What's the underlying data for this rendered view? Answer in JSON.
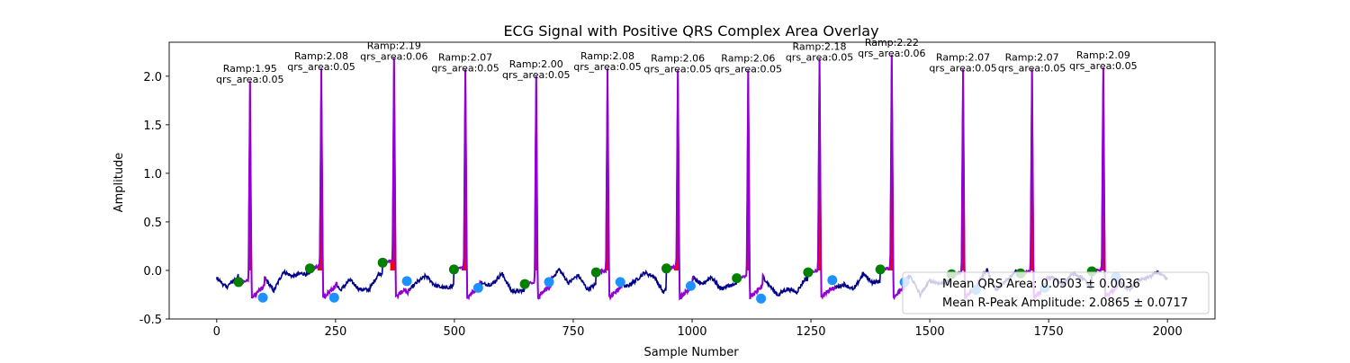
{
  "chart_data": {
    "type": "line",
    "title": "ECG Signal with Positive QRS Complex Area Overlay",
    "xlabel": "Sample Number",
    "ylabel": "Amplitude",
    "xlim": [
      -100,
      2100
    ],
    "ylim": [
      -0.5,
      2.35
    ],
    "xticks": [
      0,
      250,
      500,
      750,
      1000,
      1250,
      1500,
      1750,
      2000
    ],
    "yticks": [
      -0.5,
      0.0,
      0.5,
      1.0,
      1.5,
      2.0
    ],
    "grid": false,
    "colors": {
      "signal": "#00008b",
      "qrs_line": "#9400d3",
      "qrs_fill": "#ff0000",
      "q_marker": "#008000",
      "s_marker": "#1e90ff"
    },
    "r_peaks": [
      {
        "x": 70,
        "ramp": 1.95,
        "ramp_label": "Ramp:1.95",
        "qrs_label": "qrs_area:0.05",
        "q_x": 46,
        "q_y": -0.12,
        "s_x": 97,
        "s_y": -0.28
      },
      {
        "x": 220,
        "ramp": 2.08,
        "ramp_label": "Ramp:2.08",
        "qrs_label": "qrs_area:0.05",
        "q_x": 196,
        "q_y": 0.02,
        "s_x": 247,
        "s_y": -0.28
      },
      {
        "x": 373,
        "ramp": 2.19,
        "ramp_label": "Ramp:2.19",
        "qrs_label": "qrs_area:0.06",
        "q_x": 349,
        "q_y": 0.08,
        "s_x": 400,
        "s_y": -0.11
      },
      {
        "x": 523,
        "ramp": 2.07,
        "ramp_label": "Ramp:2.07",
        "qrs_label": "qrs_area:0.05",
        "q_x": 499,
        "q_y": 0.01,
        "s_x": 550,
        "s_y": -0.18
      },
      {
        "x": 672,
        "ramp": 2.0,
        "ramp_label": "Ramp:2.00",
        "qrs_label": "qrs_area:0.05",
        "q_x": 648,
        "q_y": -0.14,
        "s_x": 699,
        "s_y": -0.12
      },
      {
        "x": 822,
        "ramp": 2.08,
        "ramp_label": "Ramp:2.08",
        "qrs_label": "qrs_area:0.05",
        "q_x": 798,
        "q_y": -0.02,
        "s_x": 849,
        "s_y": -0.12
      },
      {
        "x": 970,
        "ramp": 2.06,
        "ramp_label": "Ramp:2.06",
        "qrs_label": "qrs_area:0.05",
        "q_x": 946,
        "q_y": 0.02,
        "s_x": 997,
        "s_y": -0.16
      },
      {
        "x": 1118,
        "ramp": 2.06,
        "ramp_label": "Ramp:2.06",
        "qrs_label": "qrs_area:0.05",
        "q_x": 1094,
        "q_y": -0.08,
        "s_x": 1145,
        "s_y": -0.29
      },
      {
        "x": 1268,
        "ramp": 2.18,
        "ramp_label": "Ramp:2.18",
        "qrs_label": "qrs_area:0.05",
        "q_x": 1244,
        "q_y": -0.02,
        "s_x": 1295,
        "s_y": -0.1
      },
      {
        "x": 1420,
        "ramp": 2.22,
        "ramp_label": "Ramp:2.22",
        "qrs_label": "qrs_area:0.06",
        "q_x": 1396,
        "q_y": 0.01,
        "s_x": 1447,
        "s_y": -0.12
      },
      {
        "x": 1570,
        "ramp": 2.07,
        "ramp_label": "Ramp:2.07",
        "qrs_label": "qrs_area:0.05",
        "q_x": 1546,
        "q_y": -0.04,
        "s_x": 1597,
        "s_y": -0.2
      },
      {
        "x": 1715,
        "ramp": 2.07,
        "ramp_label": "Ramp:2.07",
        "qrs_label": "qrs_area:0.05",
        "q_x": 1691,
        "q_y": -0.03,
        "s_x": 1742,
        "s_y": -0.18
      },
      {
        "x": 1865,
        "ramp": 2.09,
        "ramp_label": "Ramp:2.09",
        "qrs_label": "qrs_area:0.05",
        "q_x": 1841,
        "q_y": -0.01,
        "s_x": 1892,
        "s_y": -0.07
      }
    ],
    "legend": {
      "placement": "lower-right",
      "entries": [
        "Mean QRS Area: 0.0503 ± 0.0036",
        "Mean R-Peak Amplitude: 2.0865 ± 0.0717"
      ]
    }
  }
}
